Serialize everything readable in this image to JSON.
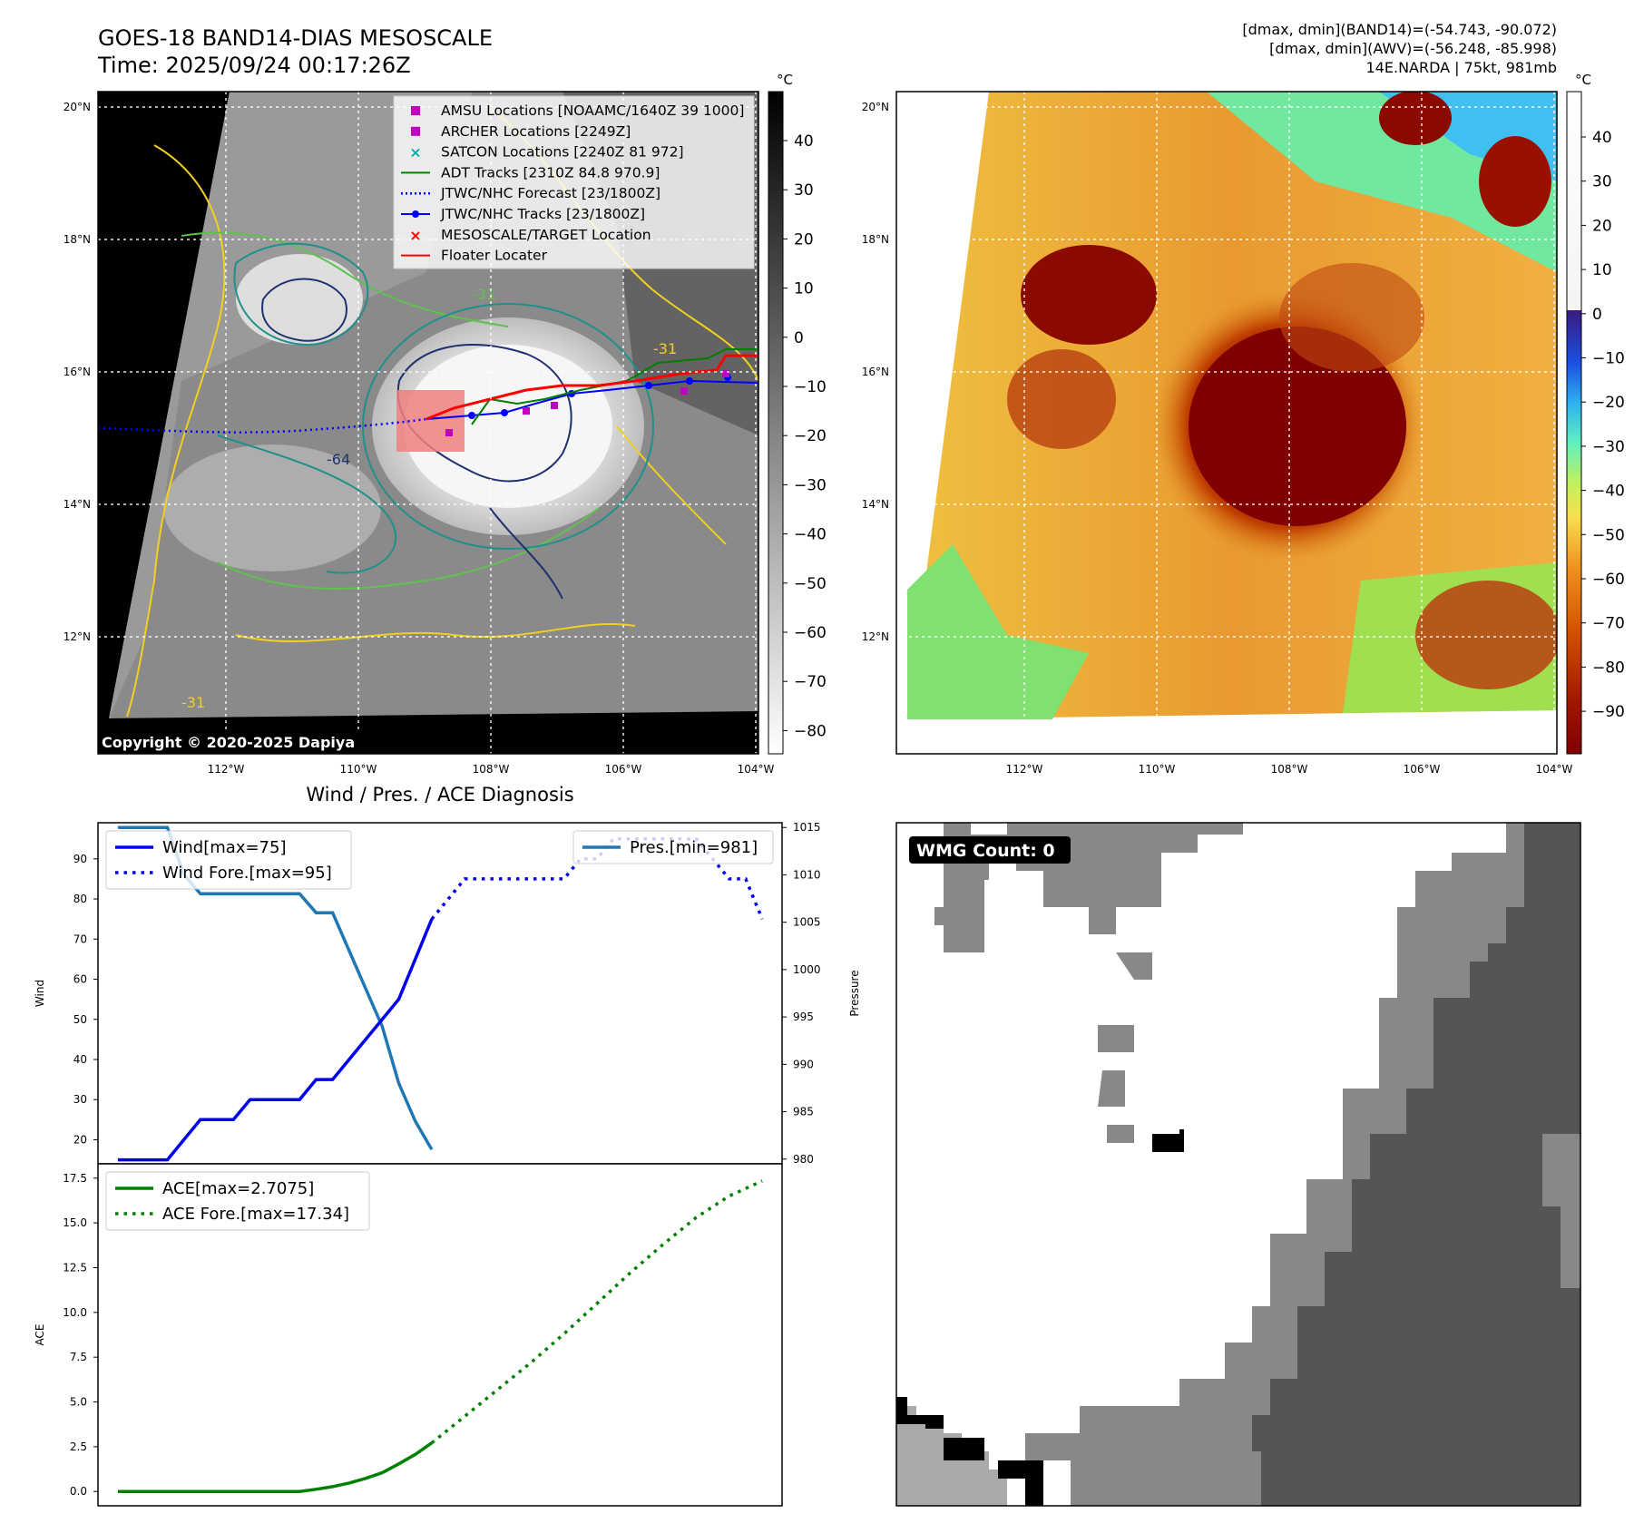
{
  "header": {
    "title_line1": "GOES-18 BAND14-DIAS MESOSCALE",
    "title_line2": "Time: 2025/09/24 00:17:26Z",
    "stats_line1": "[dmax, dmin](BAND14)=(-54.743, -90.072)",
    "stats_line2": "[dmax, dmin](AWV)=(-56.248, -85.998)",
    "stats_line3": "14E.NARDA | 75kt, 981mb"
  },
  "map": {
    "lat_labels": [
      "20°N",
      "18°N",
      "16°N",
      "14°N",
      "12°N"
    ],
    "lon_labels": [
      "112°W",
      "110°W",
      "108°W",
      "106°W",
      "104°W"
    ],
    "copyright": "Copyright © 2020-2025 Dapiya",
    "contour_labels": [
      "-31",
      "-64"
    ],
    "legend": [
      {
        "label": "AMSU Locations [NOAAMC/1640Z 39 1000]",
        "color": "#c000c0",
        "marker": "square"
      },
      {
        "label": "ARCHER Locations [2249Z]",
        "color": "#c000c0",
        "marker": "square"
      },
      {
        "label": "SATCON Locations [2240Z 81 972]",
        "color": "#00b0b0",
        "marker": "x"
      },
      {
        "label": "ADT Tracks [2310Z 84.8 970.9]",
        "color": "#007f00",
        "marker": "line"
      },
      {
        "label": "JTWC/NHC Forecast [23/1800Z]",
        "color": "#0000ff",
        "marker": "dotted"
      },
      {
        "label": "JTWC/NHC Tracks [23/1800Z]",
        "color": "#0000ff",
        "marker": "line-dot"
      },
      {
        "label": "MESOSCALE/TARGET Location",
        "color": "#ff0000",
        "marker": "x"
      },
      {
        "label": "Floater Locater",
        "color": "#ff0000",
        "marker": "line"
      }
    ]
  },
  "colorbars": {
    "unit": "°C",
    "gray_ticks": [
      "40",
      "30",
      "20",
      "10",
      "0",
      "−10",
      "−20",
      "−30",
      "−40",
      "−50",
      "−60",
      "−70",
      "−80"
    ],
    "color_ticks": [
      "40",
      "30",
      "20",
      "10",
      "0",
      "−10",
      "−20",
      "−30",
      "−40",
      "−50",
      "−60",
      "−70",
      "−80",
      "−90"
    ]
  },
  "diag_title": "Wind / Pres. / ACE Diagnosis",
  "wmg": {
    "label": "WMG Count: 0"
  },
  "colors": {
    "wind": "#0000ee",
    "pressure": "#1f77b4",
    "ace": "#008000",
    "contour_yellow": "#f0d020",
    "contour_green": "#60c050",
    "contour_teal": "#20908a",
    "contour_navy": "#203070"
  },
  "chart_data": [
    {
      "type": "line",
      "ylabel": "Wind",
      "ylim": [
        14,
        99
      ],
      "yticks": [
        20,
        30,
        40,
        50,
        60,
        70,
        80,
        90
      ],
      "legend_position": "upper-left",
      "series": [
        {
          "name": "Wind[max=75]",
          "style": "solid",
          "x": [
            0,
            3,
            5,
            7,
            8,
            11,
            12,
            13,
            14,
            15,
            16,
            17,
            18,
            19
          ],
          "y": [
            15,
            15,
            25,
            25,
            30,
            30,
            35,
            35,
            40,
            45,
            50,
            55,
            65,
            75
          ]
        },
        {
          "name": "Wind Fore.[max=95]",
          "style": "dotted",
          "x": [
            19,
            20,
            21,
            22,
            23,
            24,
            25,
            26,
            27,
            28,
            29,
            30,
            31,
            32,
            33,
            34,
            35,
            36,
            37,
            38,
            39
          ],
          "y": [
            75,
            80,
            85,
            85,
            85,
            85,
            85,
            85,
            85,
            90,
            90,
            95,
            95,
            95,
            95,
            95,
            95,
            90,
            85,
            85,
            75
          ]
        }
      ]
    },
    {
      "type": "line",
      "ylabel": "Pressure",
      "ylim": [
        979.5,
        1015.5
      ],
      "yticks": [
        980,
        985,
        990,
        995,
        1000,
        1005,
        1010,
        1015
      ],
      "legend_position": "upper-right",
      "series": [
        {
          "name": "Pres.[min=981]",
          "style": "solid",
          "x": [
            0,
            3,
            4,
            5,
            6,
            7,
            8,
            9,
            10,
            11,
            12,
            13,
            14,
            15,
            16,
            17,
            18,
            19
          ],
          "y": [
            1015,
            1015,
            1010,
            1008,
            1008,
            1008,
            1008,
            1008,
            1008,
            1008,
            1006,
            1006,
            1002,
            998,
            994,
            988,
            984,
            981
          ]
        }
      ]
    },
    {
      "type": "line",
      "ylabel": "ACE",
      "ylim": [
        -0.8,
        18.3
      ],
      "yticks": [
        0.0,
        2.5,
        5.0,
        7.5,
        10.0,
        12.5,
        15.0,
        17.5
      ],
      "legend_position": "upper-left",
      "series": [
        {
          "name": "ACE[max=2.7075]",
          "style": "solid",
          "x": [
            0,
            11,
            12,
            13,
            14,
            15,
            16,
            17,
            18,
            19
          ],
          "y": [
            0,
            0,
            0.12,
            0.27,
            0.47,
            0.73,
            1.05,
            1.54,
            2.07,
            2.71
          ]
        },
        {
          "name": "ACE Fore.[max=17.34]",
          "style": "dotted",
          "x": [
            19,
            21,
            23,
            25,
            27,
            29,
            31,
            33,
            35,
            37,
            39
          ],
          "y": [
            2.71,
            4.2,
            5.7,
            7.2,
            8.8,
            10.5,
            12.2,
            13.8,
            15.3,
            16.5,
            17.34
          ]
        }
      ]
    }
  ]
}
